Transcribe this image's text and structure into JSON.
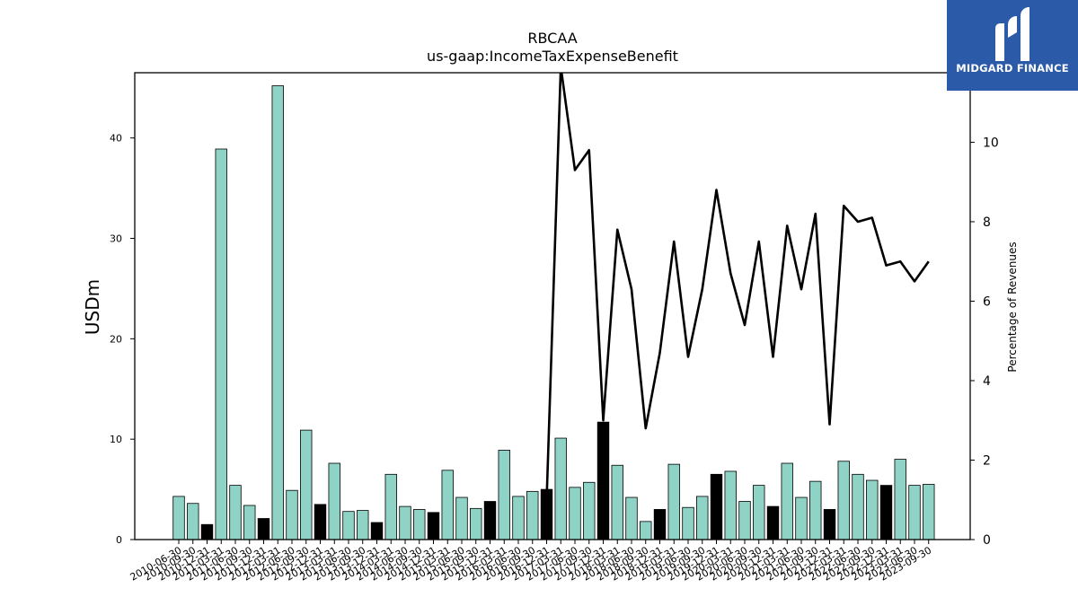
{
  "brand": {
    "name": "MIDGARD FINANCE",
    "color": "#2b5aa8",
    "icon": "midgard-logo-icon"
  },
  "colors": {
    "bar_normal": "#8fd3c7",
    "bar_q4": "#000000",
    "line": "#000000"
  },
  "chart_data": {
    "type": "bar+line",
    "title": "RBCAA",
    "subtitle": "us-gaap:IncomeTaxExpenseBenefit",
    "ylabel": "USDm",
    "y2label": "Percentage of Revenues",
    "ylim": [
      0,
      46.5
    ],
    "y2lim": [
      0,
      11.75
    ],
    "yticks": [
      0,
      10,
      20,
      30,
      40
    ],
    "y2ticks": [
      0,
      2,
      4,
      6,
      8,
      10
    ],
    "grid": false,
    "categories": [
      "2010-06-30",
      "2010-09-30",
      "2010-12-31",
      "2011-03-31",
      "2011-06-30",
      "2011-09-30",
      "2011-12-31",
      "2012-03-31",
      "2012-06-30",
      "2012-09-30",
      "2012-12-31",
      "2013-03-31",
      "2013-06-30",
      "2013-09-30",
      "2013-12-31",
      "2014-03-31",
      "2014-06-30",
      "2014-09-30",
      "2014-12-31",
      "2015-03-31",
      "2015-06-30",
      "2015-09-30",
      "2015-12-31",
      "2016-03-31",
      "2016-06-30",
      "2016-09-30",
      "2016-12-31",
      "2017-03-31",
      "2017-06-30",
      "2017-09-30",
      "2017-12-31",
      "2018-03-31",
      "2018-06-30",
      "2018-09-30",
      "2018-12-31",
      "2019-03-31",
      "2019-06-30",
      "2019-09-30",
      "2019-12-31",
      "2020-03-31",
      "2020-06-30",
      "2020-09-30",
      "2020-12-31",
      "2021-03-31",
      "2021-06-30",
      "2021-09-30",
      "2021-12-31",
      "2022-03-31",
      "2022-06-30",
      "2022-09-30",
      "2022-12-31",
      "2023-03-31",
      "2023-06-30",
      "2023-09-30"
    ],
    "series": [
      {
        "type": "bar",
        "values": [
          4.3,
          3.6,
          1.5,
          38.9,
          5.4,
          3.4,
          2.1,
          45.2,
          4.9,
          10.9,
          3.5,
          7.6,
          2.8,
          2.9,
          1.7,
          6.5,
          3.3,
          3.0,
          2.7,
          6.9,
          4.2,
          3.1,
          3.8,
          8.9,
          4.3,
          4.8,
          5.0,
          10.1,
          5.2,
          5.7,
          11.7,
          7.4,
          4.2,
          1.8,
          3.0,
          7.5,
          3.2,
          4.3,
          6.5,
          6.8,
          3.8,
          5.4,
          3.3,
          7.6,
          4.2,
          5.8,
          3.0,
          7.8,
          6.5,
          5.9,
          5.4,
          8.0,
          5.4,
          5.5
        ],
        "q4_flags": [
          0,
          0,
          1,
          0,
          0,
          0,
          1,
          0,
          0,
          0,
          1,
          0,
          0,
          0,
          1,
          0,
          0,
          0,
          1,
          0,
          0,
          0,
          1,
          0,
          0,
          0,
          1,
          0,
          0,
          0,
          1,
          0,
          0,
          0,
          1,
          0,
          0,
          0,
          1,
          0,
          0,
          0,
          1,
          0,
          0,
          0,
          1,
          0,
          0,
          0,
          1,
          0,
          0,
          0
        ]
      },
      {
        "type": "line",
        "axis": "right",
        "values": [
          null,
          null,
          null,
          null,
          null,
          null,
          null,
          null,
          null,
          null,
          null,
          null,
          null,
          null,
          null,
          null,
          null,
          null,
          null,
          null,
          null,
          null,
          null,
          null,
          null,
          null,
          1.0,
          11.9,
          9.3,
          9.8,
          3.0,
          7.8,
          6.3,
          2.8,
          4.7,
          7.5,
          4.6,
          6.3,
          8.8,
          6.7,
          5.4,
          7.5,
          4.6,
          7.9,
          6.3,
          8.2,
          2.9,
          8.4,
          8.0,
          8.1,
          6.9,
          7.0,
          6.5,
          7.0
        ]
      }
    ]
  }
}
